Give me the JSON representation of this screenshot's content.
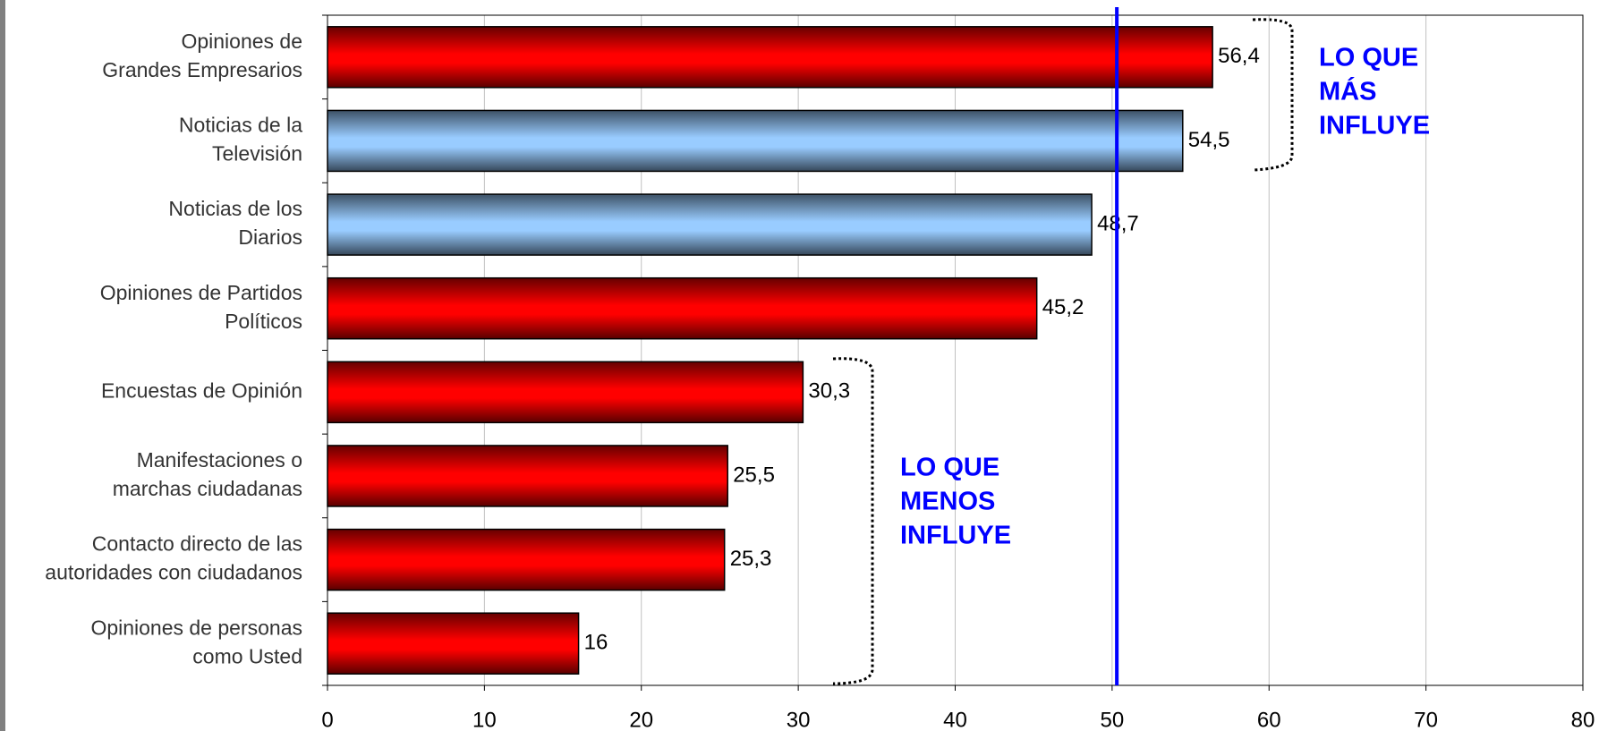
{
  "chart_data": {
    "type": "hbar",
    "categories": [
      [
        "Opiniones de",
        "Grandes Empresarios"
      ],
      [
        "Noticias de la",
        "Televisión"
      ],
      [
        "Noticias de los",
        "Diarios"
      ],
      [
        "Opiniones de Partidos",
        "Políticos"
      ],
      [
        "Encuestas de Opinión"
      ],
      [
        "Manifestaciones o",
        "marchas ciudadanas"
      ],
      [
        "Contacto directo de las",
        "autoridades con ciudadanos"
      ],
      [
        "Opiniones de personas",
        "como Usted"
      ]
    ],
    "values": [
      56.4,
      54.5,
      48.7,
      45.2,
      30.3,
      25.5,
      25.3,
      16
    ],
    "value_labels": [
      "56,4",
      "54,5",
      "48,7",
      "45,2",
      "30,3",
      "25,5",
      "25,3",
      "16"
    ],
    "colors": [
      "#ff0000",
      "#99ccff",
      "#99ccff",
      "#ff0000",
      "#ff0000",
      "#ff0000",
      "#ff0000",
      "#ff0000"
    ],
    "xlim": [
      0,
      80
    ],
    "xticks": [
      0,
      10,
      20,
      30,
      40,
      50,
      60,
      70,
      80
    ],
    "grid": true,
    "reference_line": {
      "value": 50.3,
      "color": "#0000ff"
    },
    "annotations": [
      {
        "lines": [
          "LO QUE",
          "MÁS",
          "INFLUYE"
        ],
        "color": "#0000ff"
      },
      {
        "lines": [
          "LO QUE",
          "MENOS",
          "INFLUYE"
        ],
        "color": "#0000ff"
      }
    ]
  }
}
